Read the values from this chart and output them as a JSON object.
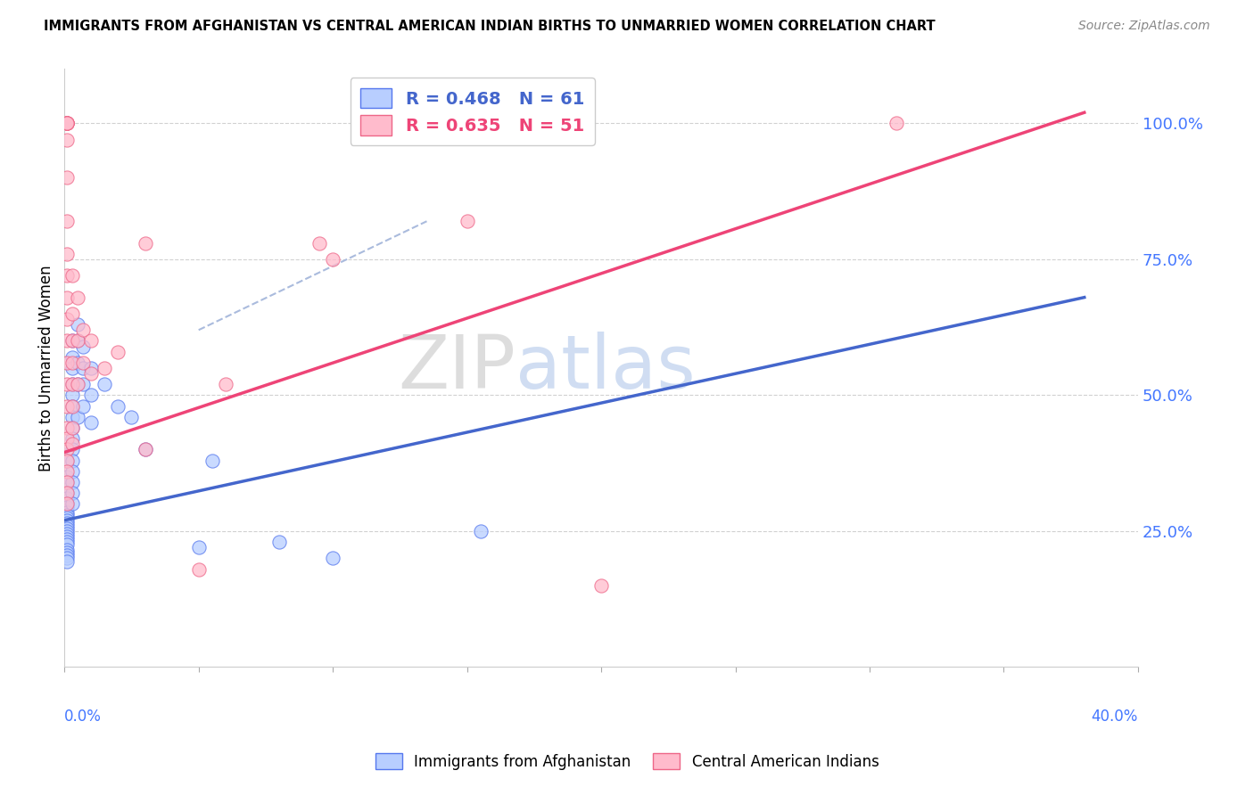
{
  "title": "IMMIGRANTS FROM AFGHANISTAN VS CENTRAL AMERICAN INDIAN BIRTHS TO UNMARRIED WOMEN CORRELATION CHART",
  "source": "Source: ZipAtlas.com",
  "ylabel": "Births to Unmarried Women",
  "right_ytick_labels": [
    "25.0%",
    "50.0%",
    "75.0%",
    "100.0%"
  ],
  "right_ytick_values": [
    0.25,
    0.5,
    0.75,
    1.0
  ],
  "legend1_label": "R = 0.468   N = 61",
  "legend2_label": "R = 0.635   N = 51",
  "blue_fill": "#b8ceff",
  "blue_edge": "#5577ee",
  "pink_fill": "#ffbbcc",
  "pink_edge": "#ee6688",
  "blue_line_color": "#4466cc",
  "pink_line_color": "#ee4477",
  "dashed_color": "#aabbdd",
  "xmin": 0.0,
  "xmax": 0.4,
  "ymin": 0.0,
  "ymax": 1.1,
  "grid_color": "#cccccc",
  "bg_color": "#ffffff",
  "blue_line": {
    "x0": 0.0,
    "y0": 0.27,
    "x1": 0.38,
    "y1": 0.68
  },
  "pink_line": {
    "x0": 0.0,
    "y0": 0.395,
    "x1": 0.38,
    "y1": 1.02
  },
  "dashed_line": {
    "x0": 0.05,
    "y0": 0.62,
    "x1": 0.135,
    "y1": 0.82
  },
  "blue_scatter": [
    [
      0.001,
      0.38
    ],
    [
      0.001,
      0.35
    ],
    [
      0.001,
      0.34
    ],
    [
      0.001,
      0.32
    ],
    [
      0.001,
      0.31
    ],
    [
      0.001,
      0.3
    ],
    [
      0.001,
      0.295
    ],
    [
      0.001,
      0.285
    ],
    [
      0.001,
      0.28
    ],
    [
      0.001,
      0.275
    ],
    [
      0.001,
      0.27
    ],
    [
      0.001,
      0.265
    ],
    [
      0.001,
      0.26
    ],
    [
      0.001,
      0.255
    ],
    [
      0.001,
      0.25
    ],
    [
      0.001,
      0.245
    ],
    [
      0.001,
      0.24
    ],
    [
      0.001,
      0.235
    ],
    [
      0.001,
      0.23
    ],
    [
      0.001,
      0.225
    ],
    [
      0.001,
      0.215
    ],
    [
      0.001,
      0.21
    ],
    [
      0.001,
      0.205
    ],
    [
      0.001,
      0.2
    ],
    [
      0.001,
      0.195
    ],
    [
      0.003,
      0.6
    ],
    [
      0.003,
      0.57
    ],
    [
      0.003,
      0.55
    ],
    [
      0.003,
      0.52
    ],
    [
      0.003,
      0.5
    ],
    [
      0.003,
      0.48
    ],
    [
      0.003,
      0.46
    ],
    [
      0.003,
      0.44
    ],
    [
      0.003,
      0.42
    ],
    [
      0.003,
      0.4
    ],
    [
      0.003,
      0.38
    ],
    [
      0.003,
      0.36
    ],
    [
      0.003,
      0.34
    ],
    [
      0.003,
      0.32
    ],
    [
      0.003,
      0.3
    ],
    [
      0.005,
      0.63
    ],
    [
      0.005,
      0.6
    ],
    [
      0.005,
      0.56
    ],
    [
      0.005,
      0.52
    ],
    [
      0.005,
      0.46
    ],
    [
      0.007,
      0.59
    ],
    [
      0.007,
      0.55
    ],
    [
      0.007,
      0.52
    ],
    [
      0.007,
      0.48
    ],
    [
      0.01,
      0.55
    ],
    [
      0.01,
      0.5
    ],
    [
      0.01,
      0.45
    ],
    [
      0.015,
      0.52
    ],
    [
      0.02,
      0.48
    ],
    [
      0.025,
      0.46
    ],
    [
      0.03,
      0.4
    ],
    [
      0.05,
      0.22
    ],
    [
      0.055,
      0.38
    ],
    [
      0.08,
      0.23
    ],
    [
      0.1,
      0.2
    ],
    [
      0.155,
      0.25
    ]
  ],
  "pink_scatter": [
    [
      0.001,
      1.0
    ],
    [
      0.001,
      1.0
    ],
    [
      0.001,
      1.0
    ],
    [
      0.001,
      1.0
    ],
    [
      0.001,
      1.0
    ],
    [
      0.001,
      1.0
    ],
    [
      0.001,
      0.97
    ],
    [
      0.001,
      0.9
    ],
    [
      0.001,
      0.82
    ],
    [
      0.001,
      0.76
    ],
    [
      0.001,
      0.72
    ],
    [
      0.001,
      0.68
    ],
    [
      0.001,
      0.64
    ],
    [
      0.001,
      0.6
    ],
    [
      0.001,
      0.56
    ],
    [
      0.001,
      0.52
    ],
    [
      0.001,
      0.48
    ],
    [
      0.001,
      0.44
    ],
    [
      0.001,
      0.42
    ],
    [
      0.001,
      0.4
    ],
    [
      0.001,
      0.38
    ],
    [
      0.001,
      0.36
    ],
    [
      0.001,
      0.34
    ],
    [
      0.001,
      0.32
    ],
    [
      0.001,
      0.3
    ],
    [
      0.003,
      0.72
    ],
    [
      0.003,
      0.65
    ],
    [
      0.003,
      0.6
    ],
    [
      0.003,
      0.56
    ],
    [
      0.003,
      0.52
    ],
    [
      0.003,
      0.48
    ],
    [
      0.003,
      0.44
    ],
    [
      0.003,
      0.41
    ],
    [
      0.005,
      0.68
    ],
    [
      0.005,
      0.6
    ],
    [
      0.005,
      0.52
    ],
    [
      0.007,
      0.62
    ],
    [
      0.007,
      0.56
    ],
    [
      0.01,
      0.6
    ],
    [
      0.01,
      0.54
    ],
    [
      0.015,
      0.55
    ],
    [
      0.02,
      0.58
    ],
    [
      0.03,
      0.4
    ],
    [
      0.03,
      0.78
    ],
    [
      0.05,
      0.18
    ],
    [
      0.06,
      0.52
    ],
    [
      0.095,
      0.78
    ],
    [
      0.1,
      0.75
    ],
    [
      0.15,
      0.82
    ],
    [
      0.2,
      0.15
    ],
    [
      0.31,
      1.0
    ]
  ]
}
